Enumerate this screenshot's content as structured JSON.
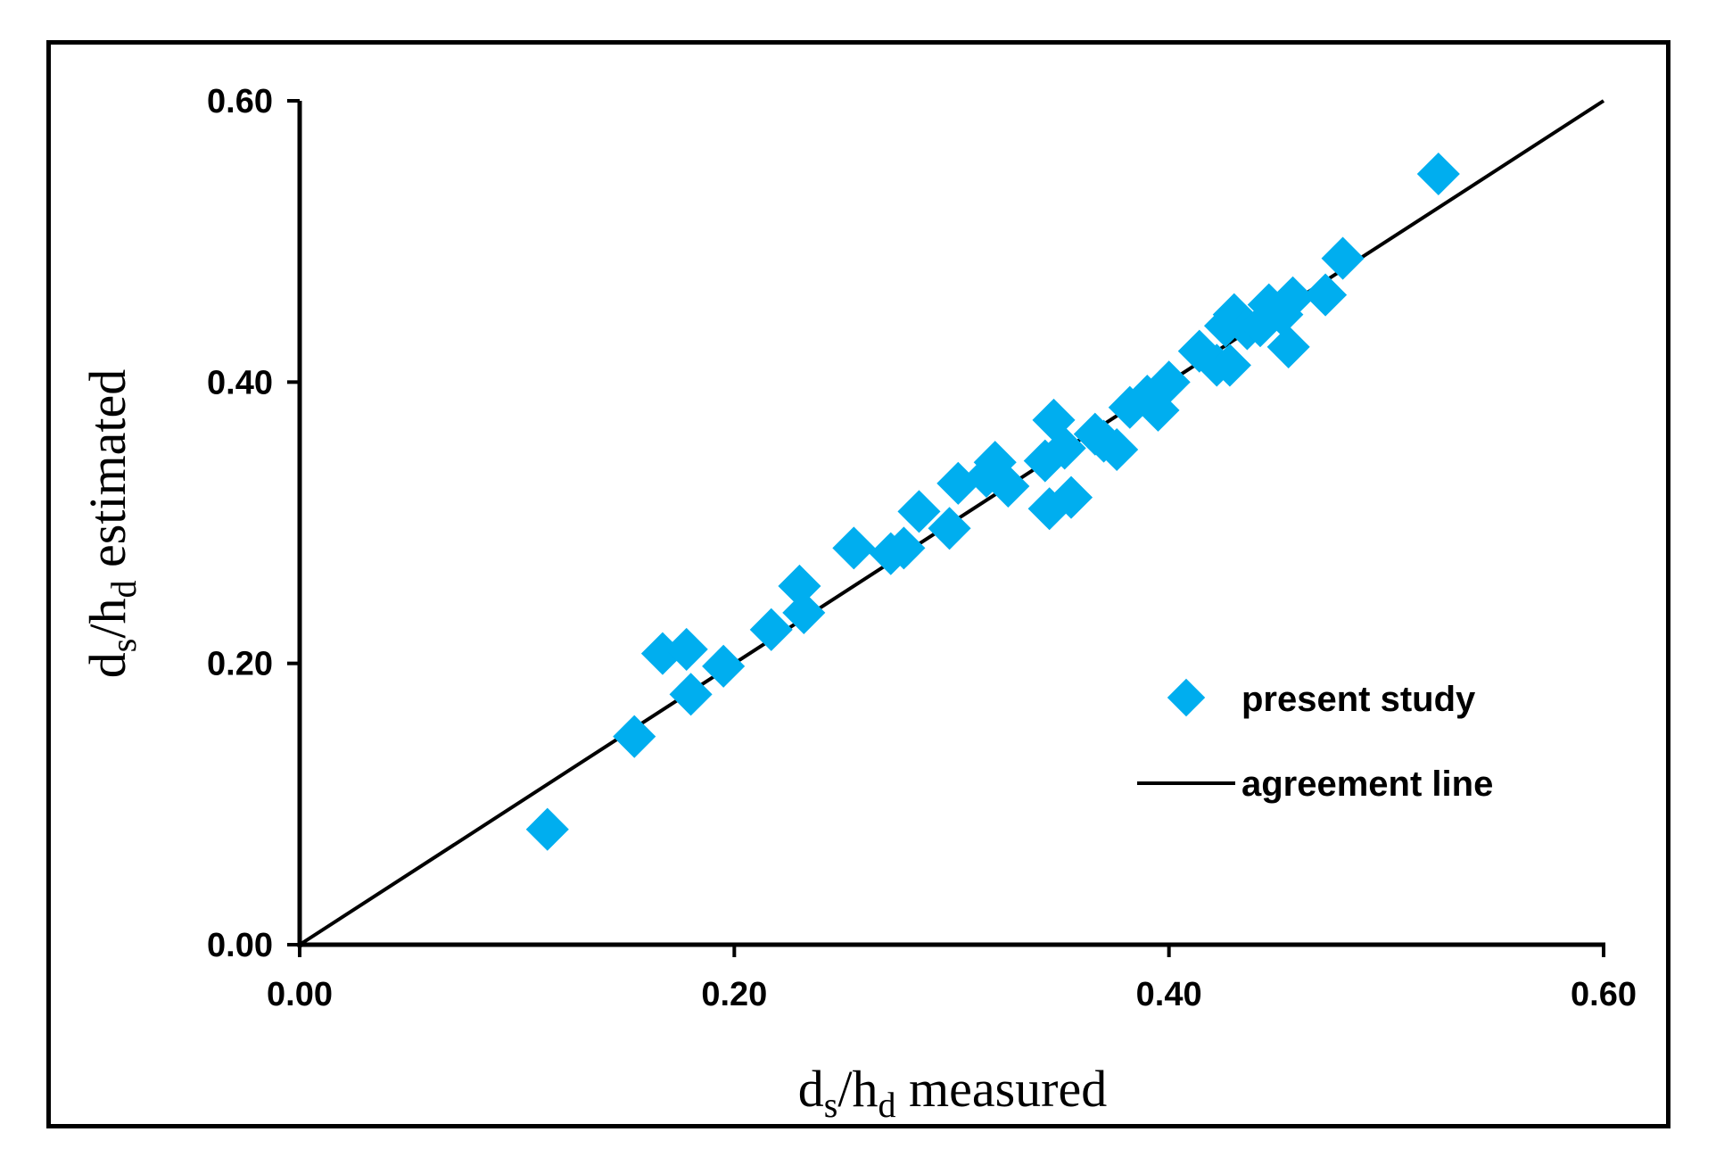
{
  "chart_data": {
    "type": "scatter",
    "title": "",
    "xlabel": {
      "base": "d",
      "sub1": "s",
      "mid": "/h",
      "sub2": "d",
      "rest": " measured"
    },
    "ylabel": {
      "base": "d",
      "sub1": "s",
      "mid": "/h",
      "sub2": "d",
      "rest": " estimated"
    },
    "xlim": [
      0,
      0.6
    ],
    "ylim": [
      0,
      0.6
    ],
    "x_ticks": [
      "0.00",
      "0.20",
      "0.40",
      "0.60"
    ],
    "y_ticks": [
      "0.00",
      "0.20",
      "0.40",
      "0.60"
    ],
    "grid": false,
    "legend_position": "lower-right",
    "series": [
      {
        "name": "present study",
        "kind": "scatter",
        "marker": "diamond",
        "color": "#00AEEF",
        "points": [
          [
            0.114,
            0.082
          ],
          [
            0.154,
            0.148
          ],
          [
            0.167,
            0.207
          ],
          [
            0.178,
            0.21
          ],
          [
            0.18,
            0.178
          ],
          [
            0.195,
            0.198
          ],
          [
            0.217,
            0.224
          ],
          [
            0.23,
            0.255
          ],
          [
            0.232,
            0.236
          ],
          [
            0.255,
            0.282
          ],
          [
            0.272,
            0.278
          ],
          [
            0.278,
            0.282
          ],
          [
            0.285,
            0.308
          ],
          [
            0.299,
            0.296
          ],
          [
            0.303,
            0.328
          ],
          [
            0.316,
            0.333
          ],
          [
            0.32,
            0.343
          ],
          [
            0.326,
            0.326
          ],
          [
            0.345,
            0.31
          ],
          [
            0.343,
            0.344
          ],
          [
            0.347,
            0.373
          ],
          [
            0.352,
            0.353
          ],
          [
            0.355,
            0.318
          ],
          [
            0.366,
            0.363
          ],
          [
            0.37,
            0.358
          ],
          [
            0.376,
            0.352
          ],
          [
            0.382,
            0.382
          ],
          [
            0.39,
            0.39
          ],
          [
            0.395,
            0.38
          ],
          [
            0.4,
            0.4
          ],
          [
            0.414,
            0.422
          ],
          [
            0.422,
            0.412
          ],
          [
            0.428,
            0.412
          ],
          [
            0.426,
            0.44
          ],
          [
            0.43,
            0.448
          ],
          [
            0.436,
            0.438
          ],
          [
            0.442,
            0.44
          ],
          [
            0.446,
            0.455
          ],
          [
            0.452,
            0.448
          ],
          [
            0.455,
            0.425
          ],
          [
            0.457,
            0.46
          ],
          [
            0.472,
            0.462
          ],
          [
            0.48,
            0.488
          ],
          [
            0.524,
            0.548
          ]
        ]
      },
      {
        "name": "agreement line",
        "kind": "line",
        "color": "#000000",
        "points": [
          [
            0,
            0
          ],
          [
            0.6,
            0.6
          ]
        ]
      }
    ]
  }
}
